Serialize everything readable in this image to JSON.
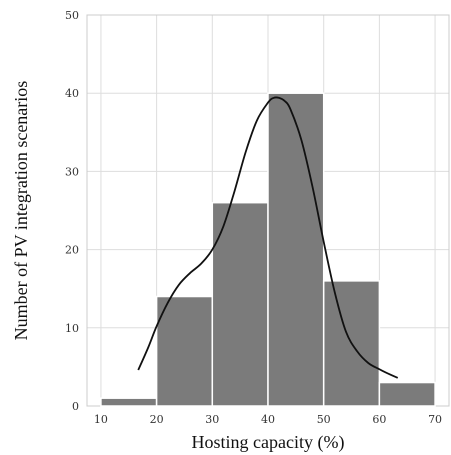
{
  "chart_data": {
    "type": "bar",
    "subtype": "histogram",
    "bins": [
      [
        10,
        20
      ],
      [
        20,
        30
      ],
      [
        30,
        40
      ],
      [
        40,
        50
      ],
      [
        50,
        60
      ],
      [
        60,
        70
      ]
    ],
    "values": [
      1,
      14,
      26,
      40,
      16,
      3
    ],
    "bar_color": "#7b7b7b",
    "density_curve": {
      "color": "#111111",
      "x": [
        16.7,
        18.5,
        20,
        22,
        24,
        26,
        28,
        30,
        32,
        34,
        36,
        38,
        40,
        41,
        42,
        43,
        44,
        46,
        48,
        50,
        52,
        54,
        56,
        58,
        60,
        62,
        63.3
      ],
      "y": [
        4.6,
        7.5,
        10.2,
        13.2,
        15.5,
        17,
        18.2,
        20,
        23,
        27.5,
        32.5,
        36.5,
        38.8,
        39.4,
        39.4,
        39,
        38,
        34,
        28,
        21,
        14.5,
        9.5,
        7,
        5.5,
        4.7,
        4,
        3.6
      ]
    },
    "xlabel": "Hosting capacity (%)",
    "ylabel": "Number of PV integration scenarios",
    "xlim": [
      7.5,
      72.5
    ],
    "ylim": [
      0,
      50
    ],
    "xticks": [
      10,
      20,
      30,
      40,
      50,
      60,
      70
    ],
    "yticks": [
      0,
      10,
      20,
      30,
      40,
      50
    ],
    "grid": true
  }
}
